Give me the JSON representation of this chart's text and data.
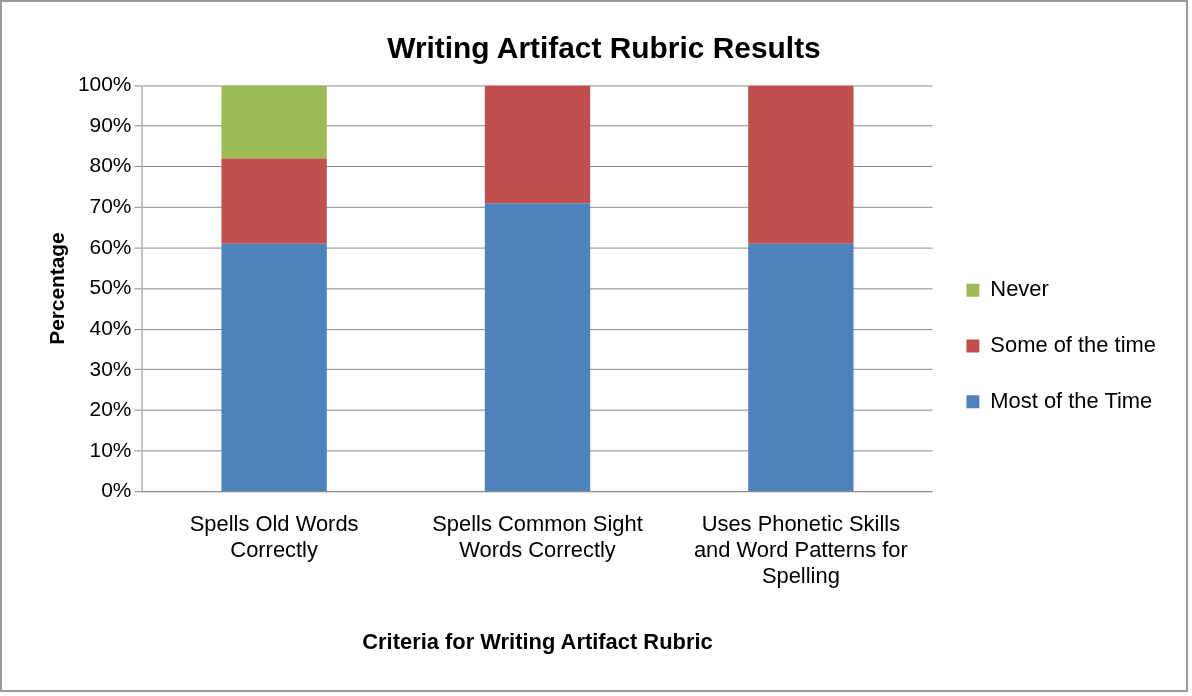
{
  "chart_data": {
    "type": "bar",
    "title": "Writing Artifact Rubric Results",
    "xlabel": "Criteria for Writing Artifact Rubric",
    "ylabel": "Percentage",
    "categories": [
      "Spells Old Words Correctly",
      "Spells Common Sight Words Correctly",
      "Uses Phonetic Skills and Word Patterns for Spelling"
    ],
    "stacked": true,
    "series": [
      {
        "name": "Most of the Time",
        "color": "#4f81bd",
        "values": [
          61,
          71,
          61
        ]
      },
      {
        "name": "Some of the time",
        "color": "#c0504d",
        "values": [
          21,
          29,
          39
        ]
      },
      {
        "name": "Never",
        "color": "#9bbb59",
        "values": [
          18,
          0,
          0
        ]
      }
    ],
    "ylim": [
      0,
      100
    ],
    "yticks": [
      {
        "value": 0,
        "label": "0%"
      },
      {
        "value": 10,
        "label": "10%"
      },
      {
        "value": 20,
        "label": "20%"
      },
      {
        "value": 30,
        "label": "30%"
      },
      {
        "value": 40,
        "label": "40%"
      },
      {
        "value": 50,
        "label": "50%"
      },
      {
        "value": 60,
        "label": "60%"
      },
      {
        "value": 70,
        "label": "70%"
      },
      {
        "value": 80,
        "label": "80%"
      },
      {
        "value": 90,
        "label": "90%"
      },
      {
        "value": 100,
        "label": "100%"
      }
    ],
    "grid": "y",
    "legend": "right"
  }
}
